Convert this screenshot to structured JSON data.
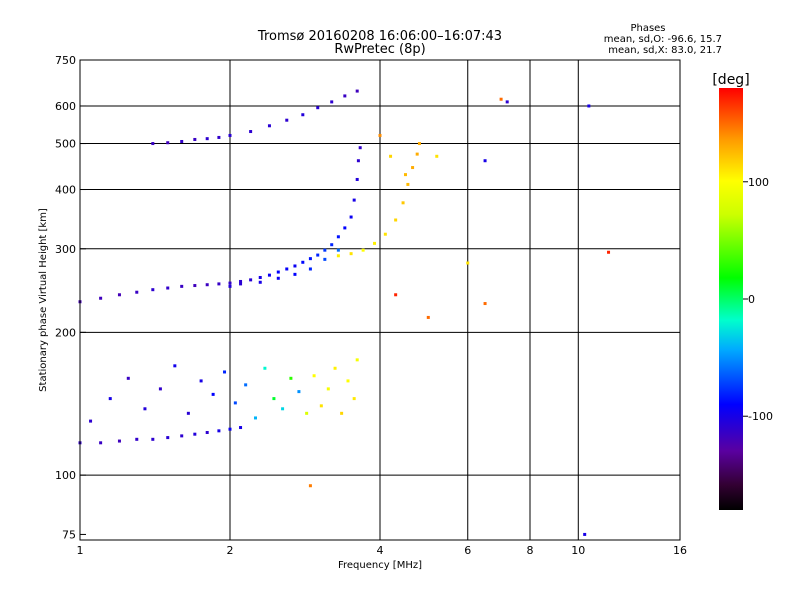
{
  "chart_data": {
    "type": "scatter",
    "title": "Tromsø 20160208 16:06:00–16:07:43",
    "subtitle": "RwPretec (8p)",
    "xlabel": "Frequency [MHz]",
    "ylabel": "Stationary phase Virtual Height [km]",
    "x_scale": "log",
    "y_scale": "log",
    "xlim": [
      1,
      16
    ],
    "ylim": [
      73,
      750
    ],
    "x_ticks": [
      1,
      2,
      4,
      6,
      8,
      10,
      16
    ],
    "x_tick_labels": [
      "1",
      "2",
      "4",
      "6",
      "8",
      "10",
      "16"
    ],
    "y_ticks": [
      75,
      100,
      200,
      300,
      400,
      500,
      600,
      750
    ],
    "y_tick_labels": [
      "75",
      "100",
      "200",
      "300",
      "400",
      "500",
      "600",
      "750"
    ],
    "vertical_grid": [
      2,
      4,
      6,
      8,
      10
    ],
    "horizontal_grid": [
      100,
      200,
      300,
      400,
      500,
      600
    ],
    "grid": true,
    "stats": {
      "title": "Phases",
      "line_o": "mean, sd,O: -96.6, 15.7",
      "line_x": "mean, sd,X: 83.0, 21.7"
    },
    "colorbar": {
      "label": "[deg]",
      "range": [
        -180,
        180
      ],
      "ticks": [
        100,
        0,
        -100
      ],
      "tick_labels": [
        "100",
        "0",
        "-100"
      ]
    },
    "series": [
      {
        "points": [
          [
            1.0,
            232,
            -120
          ],
          [
            1.1,
            236,
            -118
          ],
          [
            1.2,
            240,
            -120
          ],
          [
            1.3,
            243,
            -115
          ],
          [
            1.4,
            246,
            -110
          ],
          [
            1.5,
            248,
            -112
          ],
          [
            1.6,
            250,
            -115
          ],
          [
            1.7,
            251,
            -118
          ],
          [
            1.8,
            252,
            -116
          ],
          [
            1.9,
            253,
            -114
          ],
          [
            2.0,
            254,
            -112
          ],
          [
            2.1,
            256,
            -110
          ],
          [
            2.2,
            258,
            -108
          ],
          [
            2.3,
            261,
            -100
          ],
          [
            2.4,
            264,
            -95
          ],
          [
            2.5,
            268,
            -90
          ],
          [
            2.6,
            272,
            -92
          ],
          [
            2.7,
            276,
            -95
          ],
          [
            2.8,
            281,
            -88
          ],
          [
            2.9,
            286,
            -85
          ],
          [
            3.0,
            291,
            -80
          ],
          [
            3.1,
            298,
            -75
          ],
          [
            3.2,
            306,
            -80
          ],
          [
            3.3,
            318,
            -85
          ],
          [
            3.4,
            332,
            -90
          ],
          [
            3.5,
            350,
            -95
          ],
          [
            3.55,
            380,
            -100
          ],
          [
            3.6,
            420,
            -105
          ],
          [
            3.62,
            460,
            -110
          ],
          [
            3.65,
            490,
            -112
          ]
        ]
      },
      {
        "points": [
          [
            2.0,
            250,
            -105
          ],
          [
            2.1,
            253,
            -108
          ],
          [
            2.3,
            255,
            -100
          ],
          [
            2.5,
            260,
            -95
          ],
          [
            2.7,
            265,
            -90
          ],
          [
            2.9,
            272,
            -80
          ],
          [
            3.1,
            285,
            -70
          ],
          [
            3.3,
            298,
            -60
          ]
        ]
      },
      {
        "points": [
          [
            3.3,
            290,
            105
          ],
          [
            3.5,
            293,
            110
          ],
          [
            3.7,
            298,
            100
          ],
          [
            3.9,
            308,
            105
          ],
          [
            4.1,
            322,
            110
          ],
          [
            4.3,
            345,
            115
          ],
          [
            4.45,
            375,
            120
          ],
          [
            4.55,
            410,
            125
          ],
          [
            4.65,
            445,
            130
          ],
          [
            4.75,
            475,
            130
          ]
        ]
      },
      {
        "points": [
          [
            1.0,
            117,
            -112
          ],
          [
            1.1,
            117,
            -115
          ],
          [
            1.2,
            118,
            -118
          ],
          [
            1.3,
            119,
            -112
          ],
          [
            1.4,
            119,
            -110
          ],
          [
            1.5,
            120,
            -108
          ],
          [
            1.6,
            121,
            -110
          ],
          [
            1.7,
            122,
            -105
          ],
          [
            1.8,
            123,
            -110
          ],
          [
            1.9,
            124,
            -100
          ],
          [
            2.0,
            125,
            -95
          ],
          [
            2.1,
            126,
            -100
          ]
        ]
      },
      {
        "points": [
          [
            1.05,
            130,
            -110
          ],
          [
            1.15,
            145,
            -100
          ],
          [
            1.25,
            160,
            -115
          ],
          [
            1.35,
            138,
            -105
          ],
          [
            1.45,
            152,
            -112
          ],
          [
            1.55,
            170,
            -98
          ],
          [
            1.65,
            135,
            -108
          ],
          [
            1.75,
            158,
            -100
          ],
          [
            1.85,
            148,
            -90
          ],
          [
            1.95,
            165,
            -80
          ],
          [
            2.05,
            142,
            -70
          ],
          [
            2.15,
            155,
            -60
          ],
          [
            2.25,
            132,
            -40
          ],
          [
            2.35,
            168,
            -20
          ],
          [
            2.45,
            145,
            10
          ],
          [
            2.55,
            138,
            -30
          ],
          [
            2.65,
            160,
            30
          ],
          [
            2.75,
            150,
            -50
          ],
          [
            2.85,
            135,
            80
          ],
          [
            2.95,
            162,
            100
          ],
          [
            3.05,
            140,
            110
          ],
          [
            3.15,
            152,
            95
          ],
          [
            3.25,
            168,
            105
          ],
          [
            3.35,
            135,
            115
          ],
          [
            3.45,
            158,
            100
          ],
          [
            3.55,
            145,
            108
          ],
          [
            3.6,
            175,
            95
          ]
        ]
      },
      {
        "points": [
          [
            1.4,
            500,
            -115
          ],
          [
            1.5,
            502,
            -118
          ],
          [
            1.6,
            505,
            -112
          ],
          [
            1.7,
            510,
            -115
          ],
          [
            1.8,
            512,
            -110
          ],
          [
            1.9,
            515,
            -112
          ],
          [
            2.0,
            520,
            -108
          ],
          [
            2.2,
            530,
            -110
          ],
          [
            2.4,
            545,
            -108
          ],
          [
            2.6,
            560,
            -110
          ],
          [
            2.8,
            575,
            -105
          ],
          [
            3.0,
            595,
            -108
          ],
          [
            3.2,
            612,
            -110
          ],
          [
            3.4,
            630,
            -115
          ],
          [
            3.6,
            645,
            -118
          ]
        ]
      },
      {
        "points": [
          [
            4.0,
            520,
            140
          ],
          [
            4.2,
            470,
            115
          ],
          [
            4.5,
            430,
            125
          ],
          [
            4.8,
            500,
            130
          ],
          [
            5.2,
            470,
            110
          ],
          [
            6.0,
            280,
            110
          ],
          [
            6.5,
            460,
            -100
          ],
          [
            7.0,
            620,
            150
          ],
          [
            7.2,
            612,
            -110
          ],
          [
            10.5,
            600,
            -100
          ],
          [
            11.5,
            295,
            170
          ],
          [
            10.3,
            75,
            -100
          ],
          [
            2.9,
            95,
            145
          ],
          [
            6.5,
            230,
            150
          ],
          [
            4.3,
            240,
            170
          ],
          [
            5.0,
            215,
            150
          ]
        ]
      }
    ]
  }
}
